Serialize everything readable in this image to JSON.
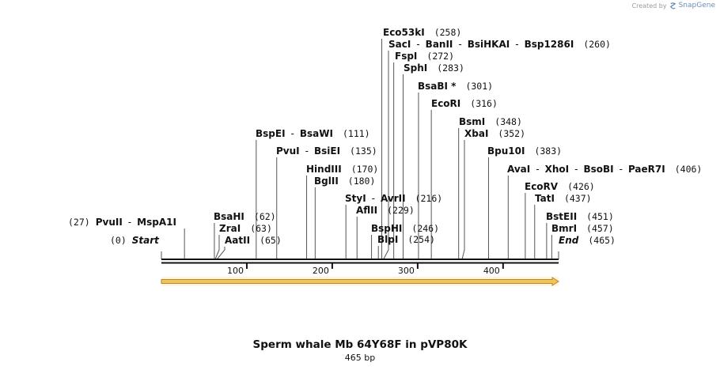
{
  "credit": {
    "prefix": "Created by",
    "brand": "SnapGene",
    "icon": "snapgene-logo-icon"
  },
  "title": "Sperm whale Mb 64Y68F in pVP80K",
  "length_label": "465 bp",
  "sequence_length": 465,
  "ticks": [
    100,
    200,
    300,
    400
  ],
  "feature": {
    "start": 1,
    "end": 465,
    "direction": "forward",
    "color": "#f2c45a"
  },
  "labels": [
    {
      "text": [
        "Eco53kI"
      ],
      "pos": "(258)",
      "site": 258
    },
    {
      "text": [
        "SacI",
        "BanII",
        "BsiHKAI",
        "Bsp1286I"
      ],
      "pos": "(260)",
      "site": 260
    },
    {
      "text": [
        "FspI"
      ],
      "pos": "(272)",
      "site": 272
    },
    {
      "text": [
        "SphI"
      ],
      "pos": "(283)",
      "site": 283
    },
    {
      "text": [
        "BsaBI *"
      ],
      "pos": "(301)",
      "site": 301
    },
    {
      "text": [
        "EcoRI"
      ],
      "pos": "(316)",
      "site": 316
    },
    {
      "text": [
        "BsmI"
      ],
      "pos": "(348)",
      "site": 348
    },
    {
      "text": [
        "XbaI"
      ],
      "pos": "(352)",
      "site": 352
    },
    {
      "text": [
        "BspEI",
        "BsaWI"
      ],
      "pos": "(111)",
      "site": 111
    },
    {
      "text": [
        "PvuI",
        "BsiEI"
      ],
      "pos": "(135)",
      "site": 135
    },
    {
      "text": [
        "Bpu10I"
      ],
      "pos": "(383)",
      "site": 383
    },
    {
      "text": [
        "HindIII"
      ],
      "pos": "(170)",
      "site": 170
    },
    {
      "text": [
        "BglII"
      ],
      "pos": "(180)",
      "site": 180
    },
    {
      "text": [
        "AvaI",
        "XhoI",
        "BsoBI",
        "PaeR7I"
      ],
      "pos": "(406)",
      "site": 406
    },
    {
      "text": [
        "StyI",
        "AvrII"
      ],
      "pos": "(216)",
      "site": 216
    },
    {
      "text": [
        "AflII"
      ],
      "pos": "(229)",
      "site": 229
    },
    {
      "text": [
        "EcoRV"
      ],
      "pos": "(426)",
      "site": 426
    },
    {
      "text": [
        "TatI"
      ],
      "pos": "(437)",
      "site": 437
    },
    {
      "text": [
        "BsaHI"
      ],
      "pos": "(62)",
      "site": 62
    },
    {
      "text": [
        "PvuII",
        "MspA1I"
      ],
      "pos": "(27)",
      "site": 27,
      "pos_first": true
    },
    {
      "text": [
        "ZraI"
      ],
      "pos": "(63)",
      "site": 63
    },
    {
      "text": [
        "BspHI"
      ],
      "pos": "(246)",
      "site": 246
    },
    {
      "text": [
        "AatII"
      ],
      "pos": "(65)",
      "site": 65
    },
    {
      "text": [
        "BlpI"
      ],
      "pos": "(254)",
      "site": 254
    },
    {
      "text": [
        "BstEII"
      ],
      "pos": "(451)",
      "site": 451
    },
    {
      "text": [
        "BmrI"
      ],
      "pos": "(457)",
      "site": 457
    },
    {
      "text": [
        "Start"
      ],
      "pos": "(0)",
      "site": 0,
      "pos_first": true,
      "italic": true
    },
    {
      "text": [
        "End"
      ],
      "pos": "(465)",
      "site": 465,
      "italic": true
    }
  ]
}
